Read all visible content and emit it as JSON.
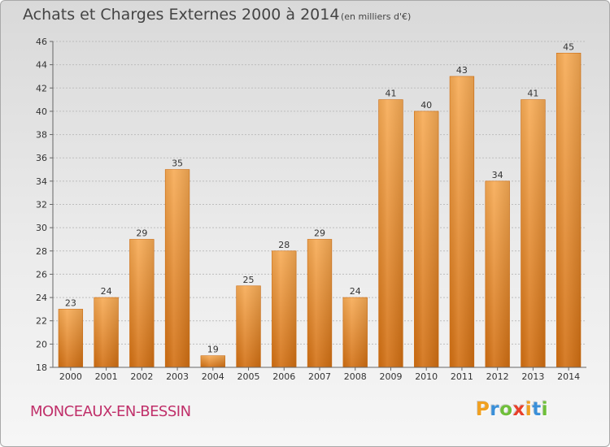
{
  "header": {
    "title": "Achats et Charges Externes 2000 à 2014",
    "subtitle": "(en milliers d'€)"
  },
  "footer": {
    "town": "MONCEAUX-EN-BESSIN",
    "logo_letters": [
      "P",
      "r",
      "o",
      "x",
      "i",
      "t",
      "i"
    ],
    "logo_colors": [
      "#f0a020",
      "#3a8fd8",
      "#6fbf3a",
      "#e8402a",
      "#f0a020",
      "#3a8fd8",
      "#6fbf3a"
    ]
  },
  "chart_data": {
    "type": "bar",
    "title": "Achats et Charges Externes 2000 à 2014",
    "subtitle": "(en milliers d'€)",
    "categories": [
      "2000",
      "2001",
      "2002",
      "2003",
      "2004",
      "2005",
      "2006",
      "2007",
      "2008",
      "2009",
      "2010",
      "2011",
      "2012",
      "2013",
      "2014"
    ],
    "values": [
      23,
      24,
      29,
      35,
      19,
      25,
      28,
      29,
      24,
      41,
      40,
      43,
      34,
      41,
      45
    ],
    "ylim": [
      18,
      46
    ],
    "yticks": [
      18,
      20,
      22,
      24,
      26,
      28,
      30,
      32,
      34,
      36,
      38,
      40,
      42,
      44,
      46
    ],
    "grid": true,
    "bar_color": "#f0922a",
    "bar_color_light": "#f7ab55",
    "bar_color_dark": "#d26f12"
  }
}
